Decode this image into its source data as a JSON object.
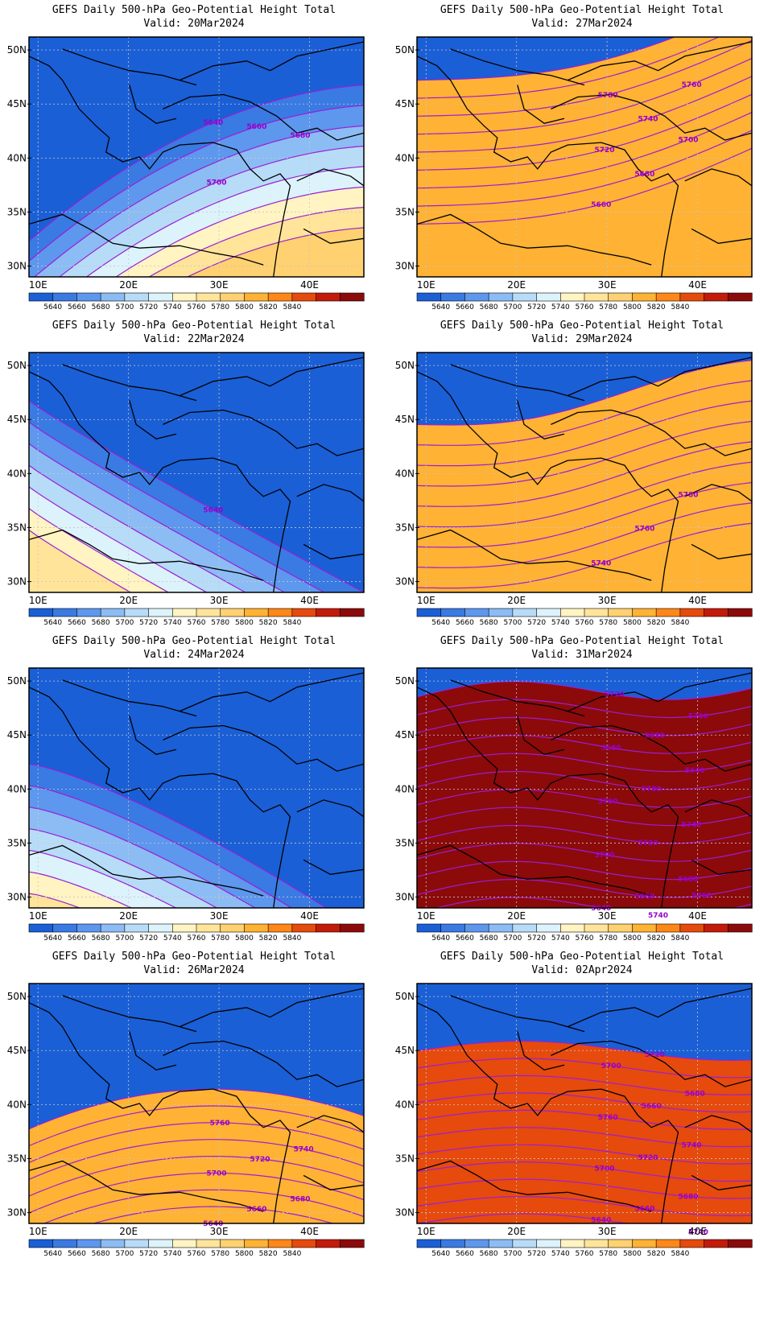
{
  "colors": {
    "levels": [
      "#1a5fd6",
      "#3a7ae3",
      "#5d97ee",
      "#8cbcf4",
      "#b7dcf8",
      "#dcf3fb",
      "#fff4c2",
      "#ffe49a",
      "#ffd170",
      "#ffb233",
      "#ff8718",
      "#e64a0c",
      "#c41a0a",
      "#8c0a0a"
    ],
    "contour": "#9a1fd6"
  },
  "colorbar_labels": [
    "5640",
    "5660",
    "5680",
    "5700",
    "5720",
    "5740",
    "5760",
    "5780",
    "5800",
    "5820",
    "5840"
  ],
  "axes": {
    "lat_labels": [
      "50N",
      "45N",
      "40N",
      "35N",
      "30N"
    ],
    "lon_labels": [
      "10E",
      "20E",
      "30E",
      "40E"
    ]
  },
  "panels": [
    {
      "title": "GEFS Daily 500-hPa Geo-Potential Height Total",
      "valid": "Valid: 20Mar2024",
      "contour_labels": [
        "5640",
        "5660",
        "5680",
        "5700"
      ]
    },
    {
      "title": "GEFS Daily 500-hPa Geo-Potential Height Total",
      "valid": "Valid: 27Mar2024",
      "contour_labels": [
        "5660",
        "5680",
        "5700",
        "5720",
        "5740",
        "5760",
        "5780"
      ]
    },
    {
      "title": "GEFS Daily 500-hPa Geo-Potential Height Total",
      "valid": "Valid: 22Mar2024",
      "contour_labels": [
        "5640"
      ]
    },
    {
      "title": "GEFS Daily 500-hPa Geo-Potential Height Total",
      "valid": "Valid: 29Mar2024",
      "contour_labels": [
        "5740",
        "5760",
        "5780"
      ]
    },
    {
      "title": "GEFS Daily 500-hPa Geo-Potential Height Total",
      "valid": "Valid: 24Mar2024",
      "contour_labels": []
    },
    {
      "title": "GEFS Daily 500-hPa Geo-Potential Height Total",
      "valid": "Valid: 31Mar2024",
      "contour_labels": [
        "5640",
        "5660",
        "5680",
        "5700",
        "5720",
        "5740",
        "5760",
        "5780",
        "5640",
        "5660",
        "5680",
        "5700",
        "5720",
        "5740",
        "5760"
      ]
    },
    {
      "title": "GEFS Daily 500-hPa Geo-Potential Height Total",
      "valid": "Valid: 26Mar2024",
      "contour_labels": [
        "5640",
        "5660",
        "5680",
        "5700",
        "5720",
        "5740",
        "5760"
      ]
    },
    {
      "title": "GEFS Daily 500-hPa Geo-Potential Height Total",
      "valid": "Valid: 02Apr2024",
      "contour_labels": [
        "5640",
        "5660",
        "5680",
        "5700",
        "5720",
        "5740",
        "5760",
        "5660",
        "5680",
        "5700",
        "5720",
        "5740"
      ]
    }
  ]
}
